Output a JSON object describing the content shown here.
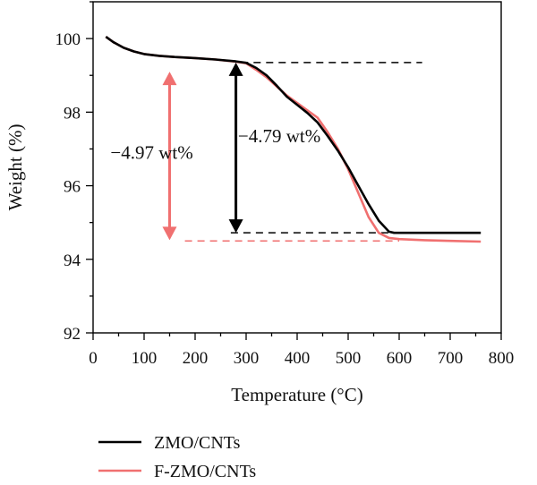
{
  "chart_data": {
    "type": "line",
    "xlabel": "Temperature (°C)",
    "ylabel": "Weight (%)",
    "xlim": [
      0,
      800
    ],
    "ylim": [
      92,
      101
    ],
    "xticks": [
      0,
      100,
      200,
      300,
      400,
      500,
      600,
      700,
      800
    ],
    "yticks": [
      92,
      94,
      96,
      98,
      100
    ],
    "grid": false,
    "legend_position": "bottom-left, below plot",
    "series": [
      {
        "name": "ZMO/CNTs",
        "color": "#000000",
        "x": [
          25,
          40,
          60,
          80,
          100,
          130,
          160,
          200,
          240,
          280,
          300,
          320,
          340,
          360,
          380,
          400,
          420,
          440,
          460,
          480,
          500,
          520,
          540,
          560,
          580,
          590,
          600,
          650,
          700,
          760
        ],
        "y": [
          100.05,
          99.9,
          99.75,
          99.65,
          99.58,
          99.53,
          99.5,
          99.47,
          99.43,
          99.38,
          99.34,
          99.2,
          99.0,
          98.72,
          98.42,
          98.2,
          97.98,
          97.72,
          97.35,
          96.95,
          96.5,
          96.0,
          95.5,
          95.05,
          94.75,
          94.72,
          94.72,
          94.72,
          94.72,
          94.72
        ]
      },
      {
        "name": "F-ZMO/CNTs",
        "color": "#f07070",
        "x": [
          25,
          40,
          60,
          80,
          100,
          130,
          160,
          200,
          240,
          280,
          300,
          320,
          340,
          360,
          380,
          400,
          420,
          440,
          460,
          480,
          500,
          520,
          540,
          560,
          580,
          600,
          650,
          700,
          760
        ],
        "y": [
          100.05,
          99.9,
          99.75,
          99.65,
          99.58,
          99.53,
          99.5,
          99.47,
          99.43,
          99.37,
          99.33,
          99.15,
          98.95,
          98.7,
          98.45,
          98.25,
          98.05,
          97.85,
          97.45,
          97.0,
          96.45,
          95.8,
          95.15,
          94.72,
          94.58,
          94.55,
          94.52,
          94.5,
          94.48
        ]
      }
    ],
    "reference_lines": [
      {
        "y": 99.35,
        "x": [
          290,
          645
        ],
        "color": "#000000",
        "style": "dashed"
      },
      {
        "y": 94.72,
        "x": [
          270,
          600
        ],
        "color": "#000000",
        "style": "dashed"
      },
      {
        "y": 94.5,
        "x": [
          180,
          600
        ],
        "color": "#f07070",
        "style": "dashed"
      }
    ],
    "arrows": [
      {
        "x": 280,
        "y_top": 99.35,
        "y_bottom": 94.72,
        "color": "#000000"
      },
      {
        "x": 150,
        "y_top": 99.1,
        "y_bottom": 94.52,
        "color": "#f07070"
      }
    ],
    "annotations": [
      {
        "text": "−4.97 wt%",
        "x": 115,
        "y": 96.9
      },
      {
        "text": "−4.79 wt%",
        "x": 365,
        "y": 97.35
      }
    ]
  }
}
